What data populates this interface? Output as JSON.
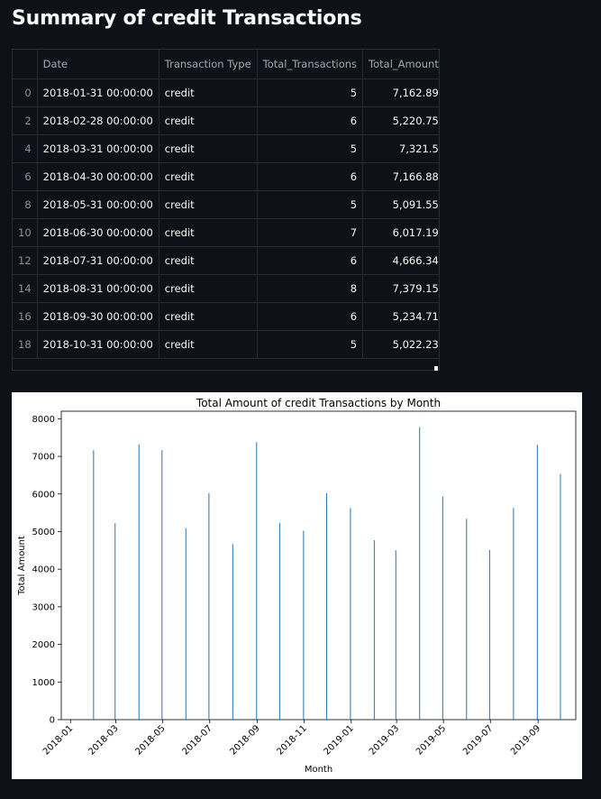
{
  "page": {
    "title": "Summary of credit Transactions"
  },
  "table": {
    "columns": [
      "",
      "Date",
      "Transaction Type",
      "Total_Transactions",
      "Total_Amount"
    ],
    "rows": [
      {
        "index": "0",
        "date": "2018-01-31 00:00:00",
        "type": "credit",
        "total_transactions": "5",
        "total_amount": "7,162.89"
      },
      {
        "index": "2",
        "date": "2018-02-28 00:00:00",
        "type": "credit",
        "total_transactions": "6",
        "total_amount": "5,220.75"
      },
      {
        "index": "4",
        "date": "2018-03-31 00:00:00",
        "type": "credit",
        "total_transactions": "5",
        "total_amount": "7,321.5"
      },
      {
        "index": "6",
        "date": "2018-04-30 00:00:00",
        "type": "credit",
        "total_transactions": "6",
        "total_amount": "7,166.88"
      },
      {
        "index": "8",
        "date": "2018-05-31 00:00:00",
        "type": "credit",
        "total_transactions": "5",
        "total_amount": "5,091.55"
      },
      {
        "index": "10",
        "date": "2018-06-30 00:00:00",
        "type": "credit",
        "total_transactions": "7",
        "total_amount": "6,017.19"
      },
      {
        "index": "12",
        "date": "2018-07-31 00:00:00",
        "type": "credit",
        "total_transactions": "6",
        "total_amount": "4,666.34"
      },
      {
        "index": "14",
        "date": "2018-08-31 00:00:00",
        "type": "credit",
        "total_transactions": "8",
        "total_amount": "7,379.15"
      },
      {
        "index": "16",
        "date": "2018-09-30 00:00:00",
        "type": "credit",
        "total_transactions": "6",
        "total_amount": "5,234.71"
      },
      {
        "index": "18",
        "date": "2018-10-31 00:00:00",
        "type": "credit",
        "total_transactions": "5",
        "total_amount": "5,022.23"
      }
    ]
  },
  "chart_data": {
    "type": "bar",
    "title": "Total Amount of credit Transactions by Month",
    "xlabel": "Month",
    "ylabel": "Total Amount",
    "x": [
      "2018-01-31",
      "2018-02-28",
      "2018-03-31",
      "2018-04-30",
      "2018-05-31",
      "2018-06-30",
      "2018-07-31",
      "2018-08-31",
      "2018-09-30",
      "2018-10-31",
      "2018-11-30",
      "2018-12-31",
      "2019-01-31",
      "2019-02-28",
      "2019-03-31",
      "2019-04-30",
      "2019-05-31",
      "2019-06-30",
      "2019-07-31",
      "2019-08-31",
      "2019-09-30"
    ],
    "values": [
      7162.89,
      5220.75,
      7321.5,
      7166.88,
      5091.55,
      6017.19,
      4666.34,
      7379.15,
      5234.71,
      5022.23,
      6020,
      5630,
      4770,
      4500,
      7780,
      5930,
      5340,
      4510,
      5630,
      7310,
      6530
    ],
    "xticks": [
      "2018-01",
      "2018-03",
      "2018-05",
      "2018-07",
      "2018-09",
      "2018-11",
      "2019-01",
      "2019-03",
      "2019-05",
      "2019-07",
      "2019-09"
    ],
    "yticks": [
      "0",
      "1000",
      "2000",
      "3000",
      "4000",
      "5000",
      "6000",
      "7000",
      "8000"
    ],
    "ylim": [
      0,
      8200
    ],
    "xlim": [
      "2017-12-20",
      "2019-10-20"
    ],
    "bar_color": "#1f77b4",
    "grid": false
  }
}
